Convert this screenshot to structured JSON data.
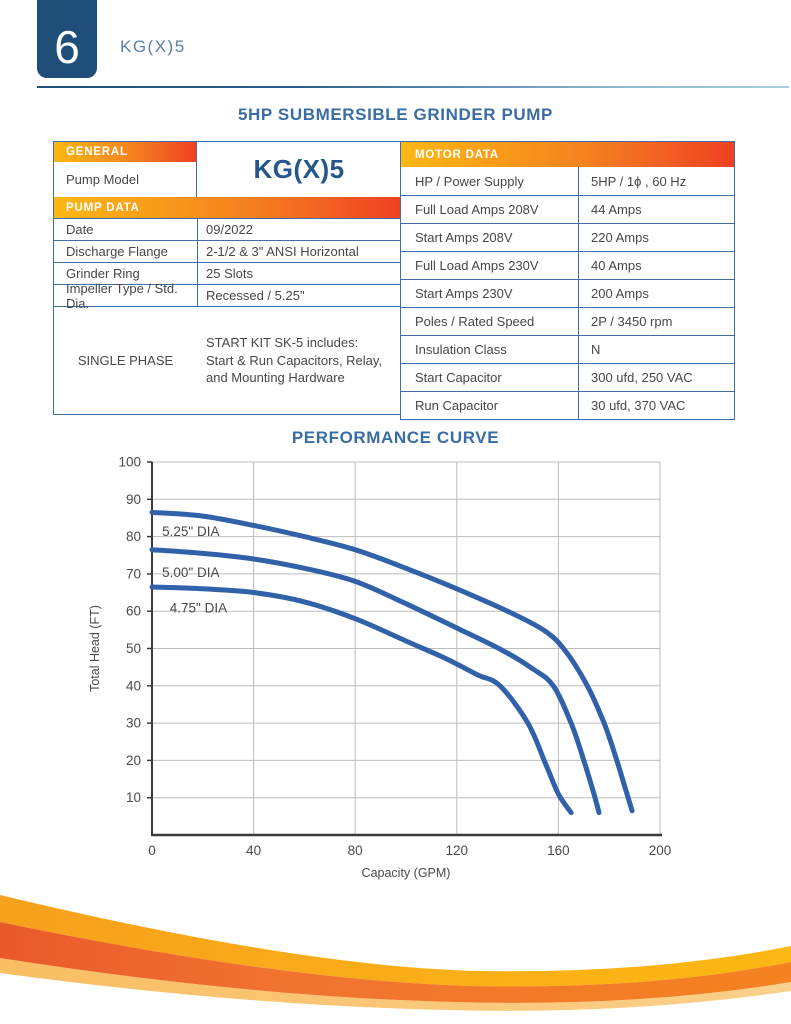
{
  "colors": {
    "navy": "#1F4E79",
    "title_blue": "#3A6CA5",
    "model_big_blue": "#24588C",
    "header_model_blue": "#5D7FA6",
    "table_border_blue": "#3E6FA5",
    "body_text": "#474747",
    "gradient_yellow": "#FDB813",
    "gradient_orange": "#F58220",
    "gradient_red": "#EF4123",
    "curve_blue": "#3161A9",
    "grid_gray": "#BDBDBD",
    "axis_dark": "#3A3A3A"
  },
  "header": {
    "page_number": "6",
    "model": "KG(X)5"
  },
  "title": "5HP SUBMERSIBLE GRINDER PUMP",
  "general_table": {
    "section_general": "GENERAL",
    "pump_model_label": "Pump Model",
    "pump_model_value": "KG(X)5",
    "section_pump_data": "PUMP DATA",
    "rows": [
      {
        "label": "Date",
        "value": "09/2022"
      },
      {
        "label": "Discharge Flange",
        "value": "2-1/2 & 3\" ANSI Horizontal"
      },
      {
        "label": "Grinder Ring",
        "value": "25 Slots"
      },
      {
        "label": "Impeller Type / Std. Dia.",
        "value": "Recessed / 5.25\""
      }
    ],
    "single_phase": {
      "label": "SINGLE PHASE",
      "value": "START KIT SK-5 includes:\nStart & Run Capacitors, Relay,\nand Mounting Hardware"
    }
  },
  "motor_table": {
    "section": "MOTOR DATA",
    "rows": [
      {
        "label": "HP / Power Supply",
        "value": "5HP / 1ϕ , 60 Hz"
      },
      {
        "label": "Full Load Amps 208V",
        "value": "44 Amps"
      },
      {
        "label": "Start Amps 208V",
        "value": "220 Amps"
      },
      {
        "label": "Full Load Amps 230V",
        "value": "40 Amps"
      },
      {
        "label": "Start Amps 230V",
        "value": "200 Amps"
      },
      {
        "label": "Poles / Rated Speed",
        "value": "2P / 3450 rpm"
      },
      {
        "label": "Insulation Class",
        "value": "N"
      },
      {
        "label": "Start Capacitor",
        "value": "300 ufd, 250 VAC"
      },
      {
        "label": "Run Capacitor",
        "value": "30 ufd, 370 VAC"
      }
    ]
  },
  "performance": {
    "title": "PERFORMANCE CURVE"
  },
  "chart_data": {
    "type": "line",
    "title": "PERFORMANCE CURVE",
    "xlabel": "Capacity (GPM)",
    "ylabel": "Total Head (FT)",
    "xlim": [
      0,
      200
    ],
    "ylim": [
      0,
      100
    ],
    "xticks": [
      0,
      40,
      80,
      120,
      160,
      200
    ],
    "yticks": [
      10,
      20,
      30,
      40,
      50,
      60,
      70,
      80,
      90,
      100
    ],
    "grid": true,
    "legend_position": "inline-labels",
    "series": [
      {
        "name": "5.25\" DIA",
        "label_pos": [
          4,
          81.5
        ],
        "points": [
          [
            0,
            86.5
          ],
          [
            20,
            85.5
          ],
          [
            40,
            83
          ],
          [
            60,
            80
          ],
          [
            80,
            76.5
          ],
          [
            100,
            71.5
          ],
          [
            120,
            66
          ],
          [
            140,
            60
          ],
          [
            154,
            55
          ],
          [
            162,
            50
          ],
          [
            171,
            40.5
          ],
          [
            178,
            30
          ],
          [
            183,
            20
          ],
          [
            187,
            11
          ],
          [
            189,
            6.5
          ]
        ]
      },
      {
        "name": "5.00\" DIA",
        "label_pos": [
          4,
          70.5
        ],
        "points": [
          [
            0,
            76.5
          ],
          [
            20,
            75.5
          ],
          [
            40,
            74
          ],
          [
            60,
            71.5
          ],
          [
            80,
            68
          ],
          [
            100,
            62
          ],
          [
            120,
            55.5
          ],
          [
            138,
            49.5
          ],
          [
            150,
            44.5
          ],
          [
            158,
            40
          ],
          [
            165,
            30
          ],
          [
            170,
            20
          ],
          [
            174,
            11
          ],
          [
            176,
            6
          ]
        ]
      },
      {
        "name": "4.75\" DIA",
        "label_pos": [
          7,
          61
        ],
        "points": [
          [
            0,
            66.5
          ],
          [
            20,
            66
          ],
          [
            40,
            65
          ],
          [
            60,
            62.5
          ],
          [
            80,
            58
          ],
          [
            100,
            52
          ],
          [
            115,
            47.5
          ],
          [
            128,
            43
          ],
          [
            137,
            40
          ],
          [
            148,
            30
          ],
          [
            155,
            19
          ],
          [
            160,
            11
          ],
          [
            165,
            6
          ]
        ]
      }
    ]
  }
}
